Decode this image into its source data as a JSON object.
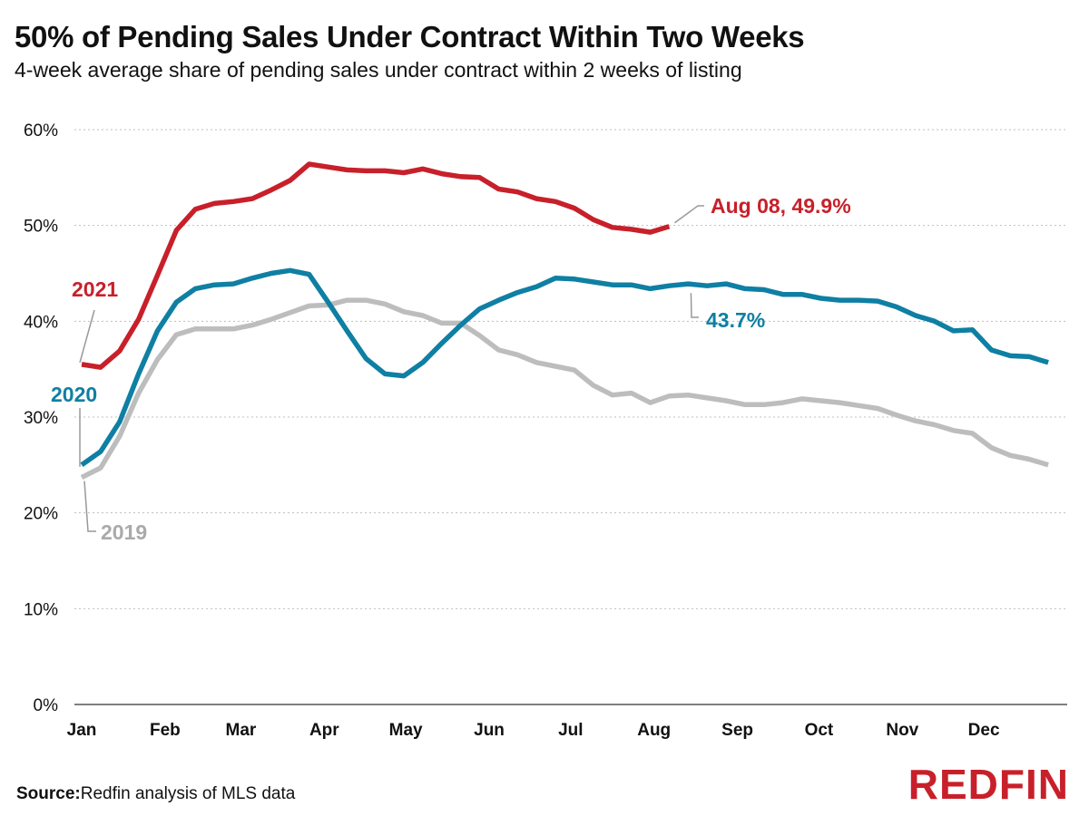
{
  "header": {
    "title": "50% of Pending Sales Under Contract Within Two Weeks",
    "subtitle": "4-week average share of pending sales under contract within 2 weeks of listing"
  },
  "footer": {
    "source_label": "Source:",
    "source_text": "Redfin analysis of MLS data",
    "logo_text": "REDFIN"
  },
  "colors": {
    "s2021": "#c8202a",
    "s2020": "#0f7fa3",
    "s2019": "#bdbdbd",
    "grid": "#bfbfbf",
    "logo": "#c8202a"
  },
  "chart_data": {
    "type": "line",
    "title": "50% of Pending Sales Under Contract Within Two Weeks",
    "subtitle": "4-week average share of pending sales under contract within 2 weeks of listing",
    "xlabel": "",
    "ylabel": "",
    "ylim": [
      0,
      60
    ],
    "x_range_weeks": [
      1,
      53
    ],
    "grid": "horizontal dotted",
    "y_ticks": [
      "0%",
      "10%",
      "20%",
      "30%",
      "40%",
      "50%",
      "60%"
    ],
    "x_ticks": [
      {
        "label": "Jan",
        "week": 1
      },
      {
        "label": "Feb",
        "week": 5.4
      },
      {
        "label": "Mar",
        "week": 9.4
      },
      {
        "label": "Apr",
        "week": 13.8
      },
      {
        "label": "May",
        "week": 18.1
      },
      {
        "label": "Jun",
        "week": 22.5
      },
      {
        "label": "Jul",
        "week": 26.8
      },
      {
        "label": "Aug",
        "week": 31.2
      },
      {
        "label": "Sep",
        "week": 35.6
      },
      {
        "label": "Oct",
        "week": 39.9
      },
      {
        "label": "Nov",
        "week": 44.3
      },
      {
        "label": "Dec",
        "week": 48.6
      }
    ],
    "series": [
      {
        "name": "2019",
        "color": "#bdbdbd",
        "week_start": 1,
        "values": [
          23.7,
          24.7,
          28.0,
          32.5,
          36.0,
          38.6,
          39.2,
          39.2,
          39.2,
          39.6,
          40.2,
          40.9,
          41.6,
          41.7,
          42.2,
          42.2,
          41.8,
          41.0,
          40.6,
          39.8,
          39.8,
          38.5,
          37.0,
          36.5,
          35.7,
          35.3,
          34.9,
          33.3,
          32.3,
          32.5,
          31.5,
          32.2,
          32.3,
          32.0,
          31.7,
          31.3,
          31.3,
          31.5,
          31.9,
          31.7,
          31.5,
          31.2,
          30.9,
          30.2,
          29.6,
          29.2,
          28.6,
          28.3,
          26.8,
          26.0,
          25.6,
          25.0
        ]
      },
      {
        "name": "2020",
        "color": "#0f7fa3",
        "week_start": 1,
        "values": [
          25.0,
          26.4,
          29.5,
          34.5,
          39.0,
          42.0,
          43.4,
          43.8,
          43.9,
          44.5,
          45.0,
          45.3,
          44.9,
          42.0,
          39.0,
          36.1,
          34.5,
          34.3,
          35.7,
          37.7,
          39.6,
          41.3,
          42.2,
          43.0,
          43.6,
          44.5,
          44.4,
          44.1,
          43.8,
          43.8,
          43.4,
          43.7,
          43.9,
          43.7,
          43.9,
          43.4,
          43.3,
          42.8,
          42.8,
          42.4,
          42.2,
          42.2,
          42.1,
          41.5,
          40.6,
          40.0,
          39.0,
          39.1,
          37.0,
          36.4,
          36.3,
          35.7
        ]
      },
      {
        "name": "2021",
        "color": "#c8202a",
        "week_start": 1,
        "values": [
          35.5,
          35.2,
          36.9,
          40.2,
          44.8,
          49.5,
          51.7,
          52.3,
          52.5,
          52.8,
          53.7,
          54.7,
          56.4,
          56.1,
          55.8,
          55.7,
          55.7,
          55.5,
          55.9,
          55.4,
          55.1,
          55.0,
          53.8,
          53.5,
          52.8,
          52.5,
          51.8,
          50.6,
          49.8,
          49.6,
          49.3,
          49.9
        ]
      }
    ],
    "annotations": [
      {
        "text": "2021",
        "series": "2021"
      },
      {
        "text": "2020",
        "series": "2020"
      },
      {
        "text": "2019",
        "series": "2019"
      },
      {
        "text": "Aug 08, 49.9%",
        "series": "2021"
      },
      {
        "text": "43.7%",
        "series": "2020"
      }
    ]
  }
}
